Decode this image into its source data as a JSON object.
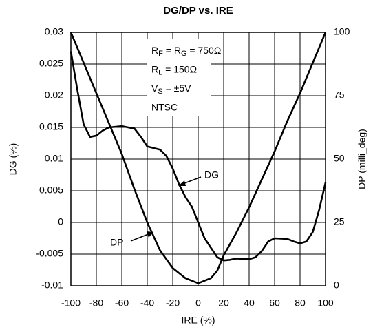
{
  "chart_data": {
    "type": "line",
    "title": "DG/DP vs. IRE",
    "xlabel": "IRE (%)",
    "ylabel": "DG (%)",
    "y2label": "DP (milli_deg)",
    "xlim": [
      -100,
      100
    ],
    "xticks": [
      -100,
      -80,
      -60,
      -40,
      -20,
      0,
      20,
      40,
      60,
      80,
      100
    ],
    "ylim": [
      -0.01,
      0.03
    ],
    "yticks": [
      0.03,
      0.025,
      0.02,
      0.015,
      0.01,
      0.005,
      0,
      -0.005,
      -0.01
    ],
    "y2lim": [
      0,
      100
    ],
    "y2ticks": [
      100,
      75,
      50,
      25,
      0
    ],
    "grid": true,
    "annotations": [
      [
        "R",
        "F",
        " = R",
        "G",
        " = 750Ω"
      ],
      [
        "R",
        "L",
        " = 150Ω"
      ],
      [
        "V",
        "S",
        " = ±5V"
      ],
      [
        "NTSC"
      ]
    ],
    "series": [
      {
        "name": "DG",
        "color": "#000000",
        "x": [
          -100,
          -95,
          -90,
          -85,
          -80,
          -75,
          -70,
          -60,
          -50,
          -45,
          -40,
          -30,
          -25,
          -20,
          -15,
          -10,
          -5,
          0,
          5,
          10,
          15,
          20,
          25,
          30,
          40,
          45,
          50,
          55,
          60,
          70,
          75,
          80,
          85,
          90,
          95,
          100
        ],
        "values": [
          0.027,
          0.021,
          0.0155,
          0.0135,
          0.0137,
          0.0145,
          0.015,
          0.0152,
          0.0148,
          0.0135,
          0.012,
          0.0115,
          0.0105,
          0.0085,
          0.006,
          0.004,
          0.0025,
          0,
          -0.0025,
          -0.004,
          -0.0055,
          -0.006,
          -0.0059,
          -0.0057,
          -0.0058,
          -0.0055,
          -0.0045,
          -0.003,
          -0.0025,
          -0.0026,
          -0.003,
          -0.0033,
          -0.003,
          -0.0015,
          0.002,
          0.0063
        ]
      },
      {
        "name": "DP",
        "color": "#000000",
        "axis": "y2",
        "x": [
          -100,
          -90,
          -80,
          -70,
          -60,
          -50,
          -40,
          -30,
          -20,
          -10,
          0,
          10,
          15,
          20,
          30,
          40,
          50,
          60,
          70,
          80,
          90,
          100
        ],
        "values": [
          100,
          88,
          76,
          64,
          52,
          38,
          25,
          14,
          7,
          3,
          1,
          3,
          6,
          12,
          21,
          31,
          42,
          53,
          65,
          76,
          88,
          100
        ]
      }
    ]
  }
}
